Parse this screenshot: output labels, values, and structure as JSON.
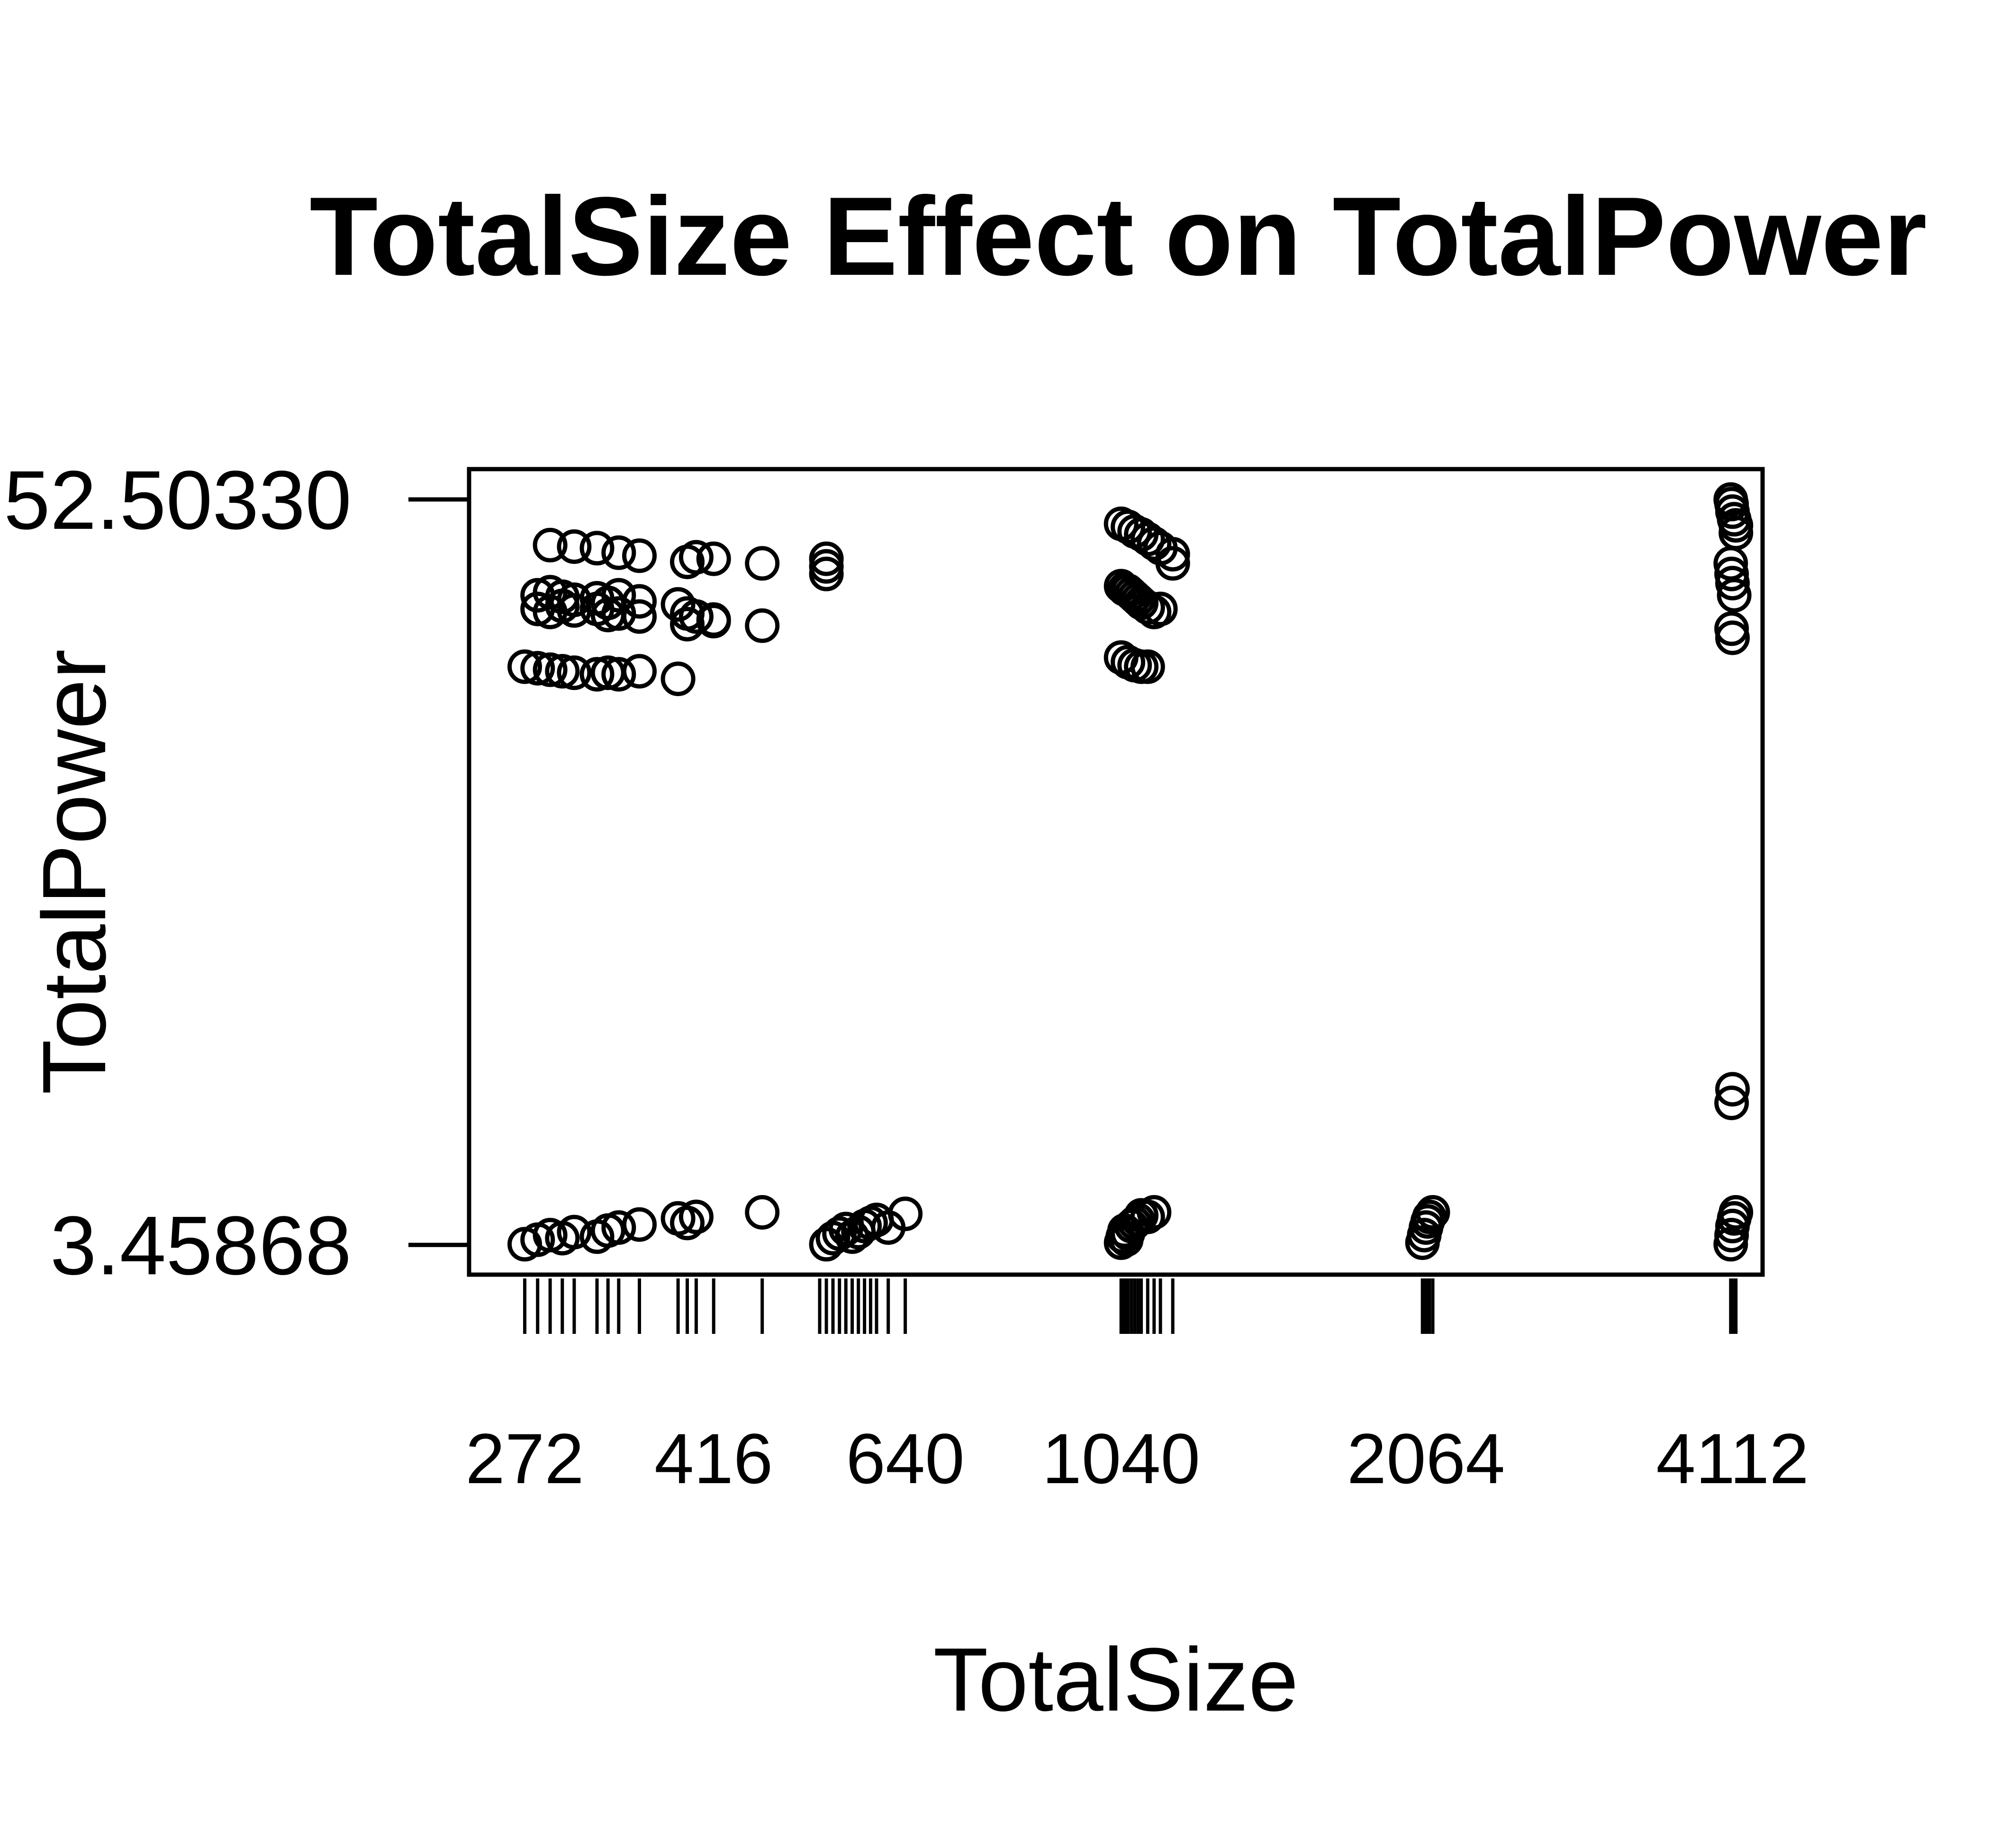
{
  "chart_data": {
    "type": "scatter",
    "title": "TotalSize Effect on TotalPower",
    "xlabel": "TotalSize",
    "ylabel": "TotalPower",
    "x_scale": "log2",
    "xlim": [
      240,
      4400
    ],
    "ylim": [
      1.5,
      54.5
    ],
    "x_ticks": [
      272,
      416,
      640,
      1040,
      2064,
      4112
    ],
    "y_ticks": [
      3.45868,
      52.5033
    ],
    "y_tick_labels": [
      "3.45868",
      "52.50330"
    ],
    "grid": false,
    "legend": "none",
    "rug_x": [
      272,
      280,
      288,
      296,
      304,
      320,
      328,
      336,
      352,
      384,
      392,
      400,
      416,
      464,
      528,
      536,
      544,
      552,
      560,
      568,
      576,
      584,
      592,
      600,
      616,
      640,
      1040,
      1044,
      1048,
      1052,
      1056,
      1064,
      1072,
      1080,
      1088,
      1104,
      1120,
      1136,
      1168,
      2048,
      2056,
      2064,
      2072,
      2080,
      2096,
      4096,
      4104,
      4112,
      4128,
      4144
    ],
    "series": [
      {
        "points": [
          [
            272,
            41.5
          ],
          [
            280,
            41.4
          ],
          [
            288,
            41.3
          ],
          [
            296,
            41.2
          ],
          [
            304,
            41.1
          ],
          [
            320,
            41.0
          ],
          [
            328,
            41.1
          ],
          [
            336,
            41.0
          ],
          [
            352,
            41.2
          ],
          [
            280,
            46.2
          ],
          [
            288,
            46.4
          ],
          [
            296,
            46.1
          ],
          [
            304,
            45.9
          ],
          [
            320,
            46.0
          ],
          [
            328,
            45.7
          ],
          [
            336,
            46.2
          ],
          [
            352,
            45.8
          ],
          [
            384,
            45.6
          ],
          [
            280,
            45.3
          ],
          [
            288,
            45.1
          ],
          [
            296,
            45.5
          ],
          [
            304,
            45.2
          ],
          [
            320,
            45.3
          ],
          [
            328,
            44.9
          ],
          [
            336,
            45.0
          ],
          [
            352,
            44.8
          ],
          [
            288,
            49.5
          ],
          [
            304,
            49.4
          ],
          [
            320,
            49.3
          ],
          [
            336,
            49.0
          ],
          [
            352,
            48.8
          ],
          [
            384,
            40.7
          ],
          [
            392,
            48.4
          ],
          [
            400,
            48.7
          ],
          [
            416,
            48.6
          ],
          [
            464,
            48.3
          ],
          [
            392,
            45.0
          ],
          [
            400,
            44.8
          ],
          [
            416,
            44.6
          ],
          [
            464,
            44.2
          ],
          [
            392,
            44.3
          ],
          [
            416,
            44.5
          ],
          [
            536,
            47.6
          ],
          [
            536,
            48.1
          ],
          [
            536,
            48.6
          ],
          [
            1040,
            50.9
          ],
          [
            1056,
            50.7
          ],
          [
            1072,
            50.4
          ],
          [
            1088,
            50.2
          ],
          [
            1104,
            49.9
          ],
          [
            1120,
            49.6
          ],
          [
            1136,
            49.3
          ],
          [
            1168,
            48.9
          ],
          [
            1168,
            48.3
          ],
          [
            1040,
            46.8
          ],
          [
            1048,
            46.6
          ],
          [
            1056,
            46.5
          ],
          [
            1064,
            46.3
          ],
          [
            1072,
            46.1
          ],
          [
            1080,
            45.9
          ],
          [
            1088,
            45.7
          ],
          [
            1104,
            45.4
          ],
          [
            1120,
            45.1
          ],
          [
            1136,
            45.3
          ],
          [
            1040,
            42.1
          ],
          [
            1056,
            41.8
          ],
          [
            1072,
            41.6
          ],
          [
            1088,
            41.5
          ],
          [
            1104,
            41.5
          ],
          [
            4096,
            52.5
          ],
          [
            4104,
            52.2
          ],
          [
            4112,
            51.7
          ],
          [
            4128,
            51.2
          ],
          [
            4144,
            50.8
          ],
          [
            4144,
            50.3
          ],
          [
            4096,
            48.3
          ],
          [
            4104,
            47.6
          ],
          [
            4112,
            47.0
          ],
          [
            4128,
            46.2
          ],
          [
            4104,
            44.0
          ],
          [
            4112,
            43.4
          ],
          [
            4112,
            13.7
          ],
          [
            4104,
            12.8
          ],
          [
            272,
            3.5
          ],
          [
            280,
            3.8
          ],
          [
            288,
            4.1
          ],
          [
            296,
            3.9
          ],
          [
            304,
            4.3
          ],
          [
            320,
            4.0
          ],
          [
            328,
            4.4
          ],
          [
            336,
            4.6
          ],
          [
            352,
            4.8
          ],
          [
            384,
            5.2
          ],
          [
            392,
            4.9
          ],
          [
            400,
            5.3
          ],
          [
            464,
            5.6
          ],
          [
            536,
            3.5
          ],
          [
            544,
            3.9
          ],
          [
            552,
            4.2
          ],
          [
            560,
            4.5
          ],
          [
            568,
            4.0
          ],
          [
            576,
            4.3
          ],
          [
            584,
            4.7
          ],
          [
            592,
            4.9
          ],
          [
            600,
            5.1
          ],
          [
            616,
            4.6
          ],
          [
            640,
            5.5
          ],
          [
            1040,
            3.6
          ],
          [
            1044,
            4.0
          ],
          [
            1048,
            4.4
          ],
          [
            1052,
            3.8
          ],
          [
            1056,
            4.2
          ],
          [
            1064,
            4.7
          ],
          [
            1072,
            4.9
          ],
          [
            1080,
            5.1
          ],
          [
            1088,
            5.4
          ],
          [
            1104,
            5.3
          ],
          [
            1120,
            5.6
          ],
          [
            2048,
            3.6
          ],
          [
            2056,
            4.1
          ],
          [
            2064,
            4.6
          ],
          [
            2072,
            5.0
          ],
          [
            2080,
            5.3
          ],
          [
            2096,
            5.6
          ],
          [
            4096,
            3.5
          ],
          [
            4104,
            4.1
          ],
          [
            4112,
            4.7
          ],
          [
            4128,
            5.2
          ],
          [
            4144,
            5.6
          ]
        ]
      }
    ]
  }
}
